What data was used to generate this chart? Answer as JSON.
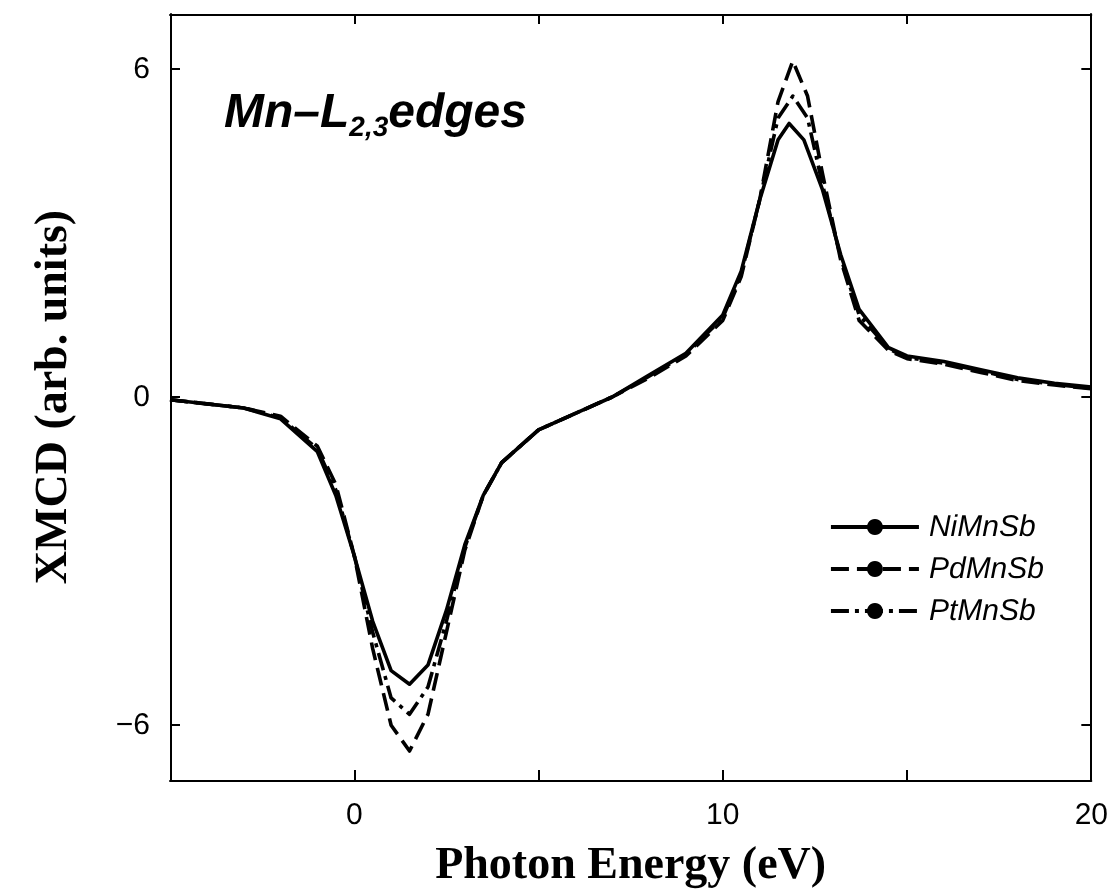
{
  "chart_data": {
    "type": "line",
    "xlabel": "Photon Energy (eV)",
    "ylabel": "XMCD (arb. units)",
    "annotations": [
      "Mn–L$_{2,3}$edges"
    ],
    "xlim": [
      -5,
      20
    ],
    "ylim": [
      -7,
      7
    ],
    "xticks": [
      0,
      {
        "value": 5,
        "label": null
      },
      10,
      {
        "value": 15,
        "label": null
      },
      20
    ],
    "yticks": [
      -6,
      0,
      6
    ],
    "grid": false,
    "legend": "bottom right",
    "marker": "none",
    "series": [
      {
        "name": "NiMnSb",
        "color": "#000000",
        "line_style": "solid",
        "x": [
          -5,
          -3,
          -2,
          -1,
          -0.5,
          0,
          0.5,
          1,
          1.5,
          2,
          2.5,
          3,
          3.5,
          4,
          5,
          6,
          7,
          8,
          9,
          10,
          10.5,
          11,
          11.5,
          11.8,
          12.2,
          12.7,
          13.2,
          13.7,
          14.5,
          15,
          16,
          17,
          18,
          19,
          20
        ],
        "values": [
          -0.05,
          -0.2,
          -0.4,
          -1.0,
          -1.8,
          -2.9,
          -4.1,
          -5.0,
          -5.25,
          -4.9,
          -3.9,
          -2.7,
          -1.8,
          -1.2,
          -0.6,
          -0.3,
          0.0,
          0.4,
          0.8,
          1.5,
          2.3,
          3.6,
          4.7,
          5.0,
          4.7,
          3.8,
          2.6,
          1.6,
          0.9,
          0.75,
          0.65,
          0.5,
          0.35,
          0.25,
          0.18
        ]
      },
      {
        "name": "PdMnSb",
        "color": "#000000",
        "line_style": "dashed",
        "x": [
          -5,
          -3,
          -2,
          -1,
          -0.5,
          0,
          0.5,
          1,
          1.5,
          2,
          2.5,
          3,
          3.5,
          4,
          5,
          6,
          7,
          8,
          9,
          10,
          10.5,
          11,
          11.5,
          11.9,
          12.3,
          12.7,
          13.2,
          13.7,
          14.5,
          15,
          16,
          17,
          18,
          19,
          20
        ],
        "values": [
          -0.05,
          -0.2,
          -0.35,
          -0.9,
          -1.6,
          -2.9,
          -4.6,
          -6.0,
          -6.47,
          -5.8,
          -4.3,
          -2.8,
          -1.8,
          -1.2,
          -0.6,
          -0.3,
          0.0,
          0.35,
          0.75,
          1.4,
          2.2,
          3.6,
          5.4,
          6.14,
          5.5,
          4.1,
          2.5,
          1.4,
          0.85,
          0.7,
          0.6,
          0.45,
          0.3,
          0.22,
          0.15
        ]
      },
      {
        "name": "PtMnSb",
        "color": "#000000",
        "line_style": "dashdot",
        "x": [
          -5,
          -3,
          -2,
          -1,
          -0.5,
          0,
          0.5,
          1,
          1.5,
          2,
          2.5,
          3,
          3.5,
          4,
          5,
          6,
          7,
          8,
          9,
          10,
          10.5,
          11,
          11.5,
          11.9,
          12.3,
          12.7,
          13.2,
          13.7,
          14.5,
          15,
          16,
          17,
          18,
          19,
          20
        ],
        "values": [
          -0.05,
          -0.2,
          -0.38,
          -0.95,
          -1.7,
          -2.9,
          -4.3,
          -5.5,
          -5.8,
          -5.3,
          -4.1,
          -2.75,
          -1.8,
          -1.2,
          -0.6,
          -0.3,
          0.0,
          0.38,
          0.78,
          1.45,
          2.25,
          3.6,
          5.1,
          5.5,
          5.1,
          3.9,
          2.55,
          1.5,
          0.88,
          0.72,
          0.62,
          0.48,
          0.32,
          0.23,
          0.16
        ]
      }
    ]
  }
}
